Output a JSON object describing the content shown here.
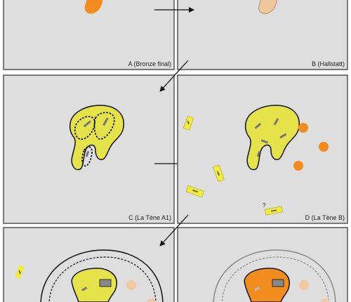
{
  "panels": [
    {
      "id": "A",
      "label": "A (Bronze final)"
    },
    {
      "id": "B",
      "label": "B (Hallstatt)"
    },
    {
      "id": "C",
      "label": "C (La Tène A1)"
    },
    {
      "id": "D",
      "label": "D (La Tène B)"
    },
    {
      "id": "E",
      "label": ""
    },
    {
      "id": "F",
      "label": ""
    }
  ],
  "annotations": {
    "question_mark": "?"
  },
  "colors": {
    "panel_bg": "#dedede",
    "panel_border": "#555555",
    "arrow": "#111111",
    "mound_bronze": "#f28c1e",
    "mound_hallstatt": "#f0c79a",
    "mound_latene": "#e6e24a",
    "mound_late": "#f28c1e",
    "pit": "#f28c1e",
    "pit_faded": "#f2c8a0",
    "grave_yellow": "#f2ec3a",
    "grave_outline": "#111111"
  }
}
